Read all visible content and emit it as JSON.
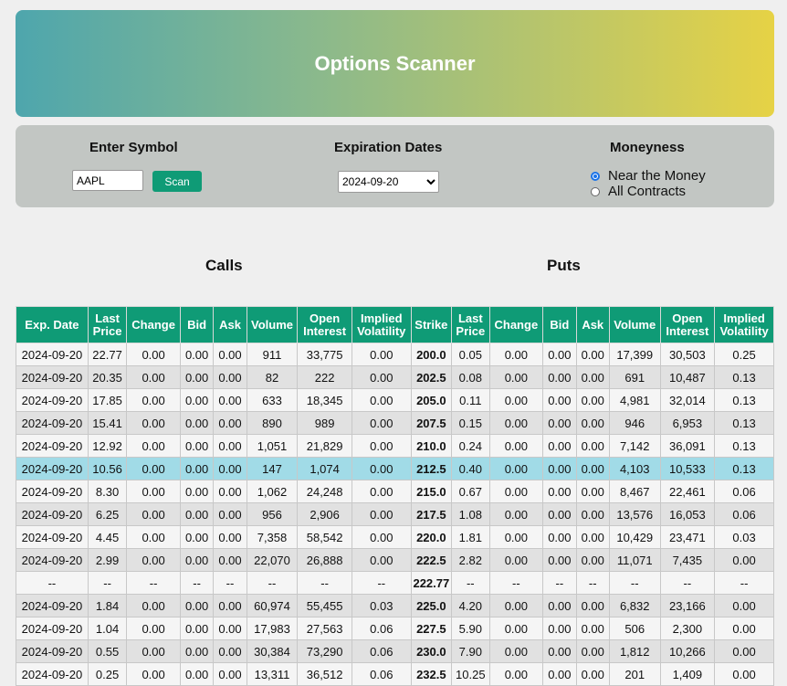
{
  "header": {
    "title": "Options Scanner"
  },
  "controls": {
    "symbol_label": "Enter Symbol",
    "symbol_value": "AAPL",
    "scan_label": "Scan",
    "expiration_label": "Expiration Dates",
    "expiration_selected": "2024-09-20",
    "moneyness_label": "Moneyness",
    "moneyness_options": [
      {
        "label": "Near the Money",
        "selected": true
      },
      {
        "label": "All Contracts",
        "selected": false
      }
    ]
  },
  "sections": {
    "calls": "Calls",
    "puts": "Puts"
  },
  "table": {
    "headers": [
      "Exp. Date",
      "Last Price",
      "Change",
      "Bid",
      "Ask",
      "Volume",
      "Open Interest",
      "Implied Volatility",
      "Strike",
      "Last Price",
      "Change",
      "Bid",
      "Ask",
      "Volume",
      "Open Interest",
      "Implied Volatility"
    ],
    "highlight_color": "#a1dbe7",
    "rows": [
      {
        "highlight": false,
        "cells": [
          "2024-09-20",
          "22.77",
          "0.00",
          "0.00",
          "0.00",
          "911",
          "33,775",
          "0.00",
          "200.0",
          "0.05",
          "0.00",
          "0.00",
          "0.00",
          "17,399",
          "30,503",
          "0.25"
        ]
      },
      {
        "highlight": false,
        "cells": [
          "2024-09-20",
          "20.35",
          "0.00",
          "0.00",
          "0.00",
          "82",
          "222",
          "0.00",
          "202.5",
          "0.08",
          "0.00",
          "0.00",
          "0.00",
          "691",
          "10,487",
          "0.13"
        ]
      },
      {
        "highlight": false,
        "cells": [
          "2024-09-20",
          "17.85",
          "0.00",
          "0.00",
          "0.00",
          "633",
          "18,345",
          "0.00",
          "205.0",
          "0.11",
          "0.00",
          "0.00",
          "0.00",
          "4,981",
          "32,014",
          "0.13"
        ]
      },
      {
        "highlight": false,
        "cells": [
          "2024-09-20",
          "15.41",
          "0.00",
          "0.00",
          "0.00",
          "890",
          "989",
          "0.00",
          "207.5",
          "0.15",
          "0.00",
          "0.00",
          "0.00",
          "946",
          "6,953",
          "0.13"
        ]
      },
      {
        "highlight": false,
        "cells": [
          "2024-09-20",
          "12.92",
          "0.00",
          "0.00",
          "0.00",
          "1,051",
          "21,829",
          "0.00",
          "210.0",
          "0.24",
          "0.00",
          "0.00",
          "0.00",
          "7,142",
          "36,091",
          "0.13"
        ]
      },
      {
        "highlight": true,
        "cells": [
          "2024-09-20",
          "10.56",
          "0.00",
          "0.00",
          "0.00",
          "147",
          "1,074",
          "0.00",
          "212.5",
          "0.40",
          "0.00",
          "0.00",
          "0.00",
          "4,103",
          "10,533",
          "0.13"
        ]
      },
      {
        "highlight": false,
        "cells": [
          "2024-09-20",
          "8.30",
          "0.00",
          "0.00",
          "0.00",
          "1,062",
          "24,248",
          "0.00",
          "215.0",
          "0.67",
          "0.00",
          "0.00",
          "0.00",
          "8,467",
          "22,461",
          "0.06"
        ]
      },
      {
        "highlight": false,
        "cells": [
          "2024-09-20",
          "6.25",
          "0.00",
          "0.00",
          "0.00",
          "956",
          "2,906",
          "0.00",
          "217.5",
          "1.08",
          "0.00",
          "0.00",
          "0.00",
          "13,576",
          "16,053",
          "0.06"
        ]
      },
      {
        "highlight": false,
        "cells": [
          "2024-09-20",
          "4.45",
          "0.00",
          "0.00",
          "0.00",
          "7,358",
          "58,542",
          "0.00",
          "220.0",
          "1.81",
          "0.00",
          "0.00",
          "0.00",
          "10,429",
          "23,471",
          "0.03"
        ]
      },
      {
        "highlight": false,
        "cells": [
          "2024-09-20",
          "2.99",
          "0.00",
          "0.00",
          "0.00",
          "22,070",
          "26,888",
          "0.00",
          "222.5",
          "2.82",
          "0.00",
          "0.00",
          "0.00",
          "11,071",
          "7,435",
          "0.00"
        ]
      },
      {
        "highlight": false,
        "cells": [
          "--",
          "--",
          "--",
          "--",
          "--",
          "--",
          "--",
          "--",
          "222.77",
          "--",
          "--",
          "--",
          "--",
          "--",
          "--",
          "--"
        ]
      },
      {
        "highlight": false,
        "cells": [
          "2024-09-20",
          "1.84",
          "0.00",
          "0.00",
          "0.00",
          "60,974",
          "55,455",
          "0.03",
          "225.0",
          "4.20",
          "0.00",
          "0.00",
          "0.00",
          "6,832",
          "23,166",
          "0.00"
        ]
      },
      {
        "highlight": false,
        "cells": [
          "2024-09-20",
          "1.04",
          "0.00",
          "0.00",
          "0.00",
          "17,983",
          "27,563",
          "0.06",
          "227.5",
          "5.90",
          "0.00",
          "0.00",
          "0.00",
          "506",
          "2,300",
          "0.00"
        ]
      },
      {
        "highlight": false,
        "cells": [
          "2024-09-20",
          "0.55",
          "0.00",
          "0.00",
          "0.00",
          "30,384",
          "73,290",
          "0.06",
          "230.0",
          "7.90",
          "0.00",
          "0.00",
          "0.00",
          "1,812",
          "10,266",
          "0.00"
        ]
      },
      {
        "highlight": false,
        "cells": [
          "2024-09-20",
          "0.25",
          "0.00",
          "0.00",
          "0.00",
          "13,311",
          "36,512",
          "0.06",
          "232.5",
          "10.25",
          "0.00",
          "0.00",
          "0.00",
          "201",
          "1,409",
          "0.00"
        ]
      }
    ]
  }
}
